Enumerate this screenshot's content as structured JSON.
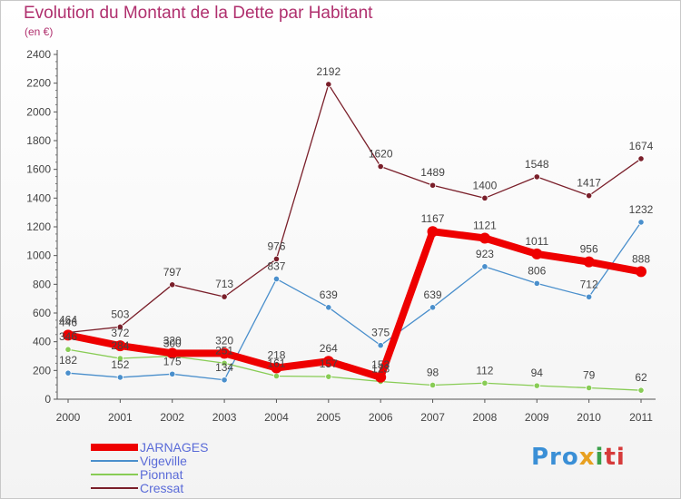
{
  "title": "Evolution du Montant de la Dette par Habitant",
  "subtitle": "(en €)",
  "logo": {
    "text": "Proxiti",
    "parts": [
      "Pro",
      "x",
      "i",
      "ti"
    ]
  },
  "chart_data": {
    "type": "line",
    "title": "Evolution du Montant de la Dette par Habitant",
    "subtitle": "(en €)",
    "x": [
      "2000",
      "2001",
      "2002",
      "2003",
      "2004",
      "2005",
      "2006",
      "2007",
      "2008",
      "2009",
      "2010",
      "2011"
    ],
    "ylim": [
      0,
      2400
    ],
    "yticks": [
      0,
      200,
      400,
      600,
      800,
      1000,
      1200,
      1400,
      1600,
      1800,
      2000,
      2200,
      2400
    ],
    "grid": false,
    "legend_position": "bottom-left",
    "series": [
      {
        "name": "Cressat",
        "color": "#7a1f2a",
        "values": [
          464,
          503,
          797,
          713,
          976,
          2192,
          1620,
          1489,
          1400,
          1548,
          1417,
          1674
        ]
      },
      {
        "name": "Vigeville",
        "color": "#4a8fcc",
        "values": [
          182,
          152,
          175,
          134,
          837,
          639,
          375,
          639,
          923,
          806,
          712,
          1232
        ]
      },
      {
        "name": "Pionnat",
        "color": "#88cc55",
        "values": [
          346,
          284,
          300,
          251,
          161,
          157,
          123,
          98,
          112,
          94,
          79,
          62
        ]
      },
      {
        "name": "JARNAGES",
        "color": "#ee0000",
        "values": [
          446,
          372,
          320,
          320,
          218,
          264,
          153,
          1167,
          1121,
          1011,
          956,
          888
        ]
      }
    ],
    "legend": [
      "JARNAGES",
      "Vigeville",
      "Pionnat",
      "Cressat"
    ]
  }
}
